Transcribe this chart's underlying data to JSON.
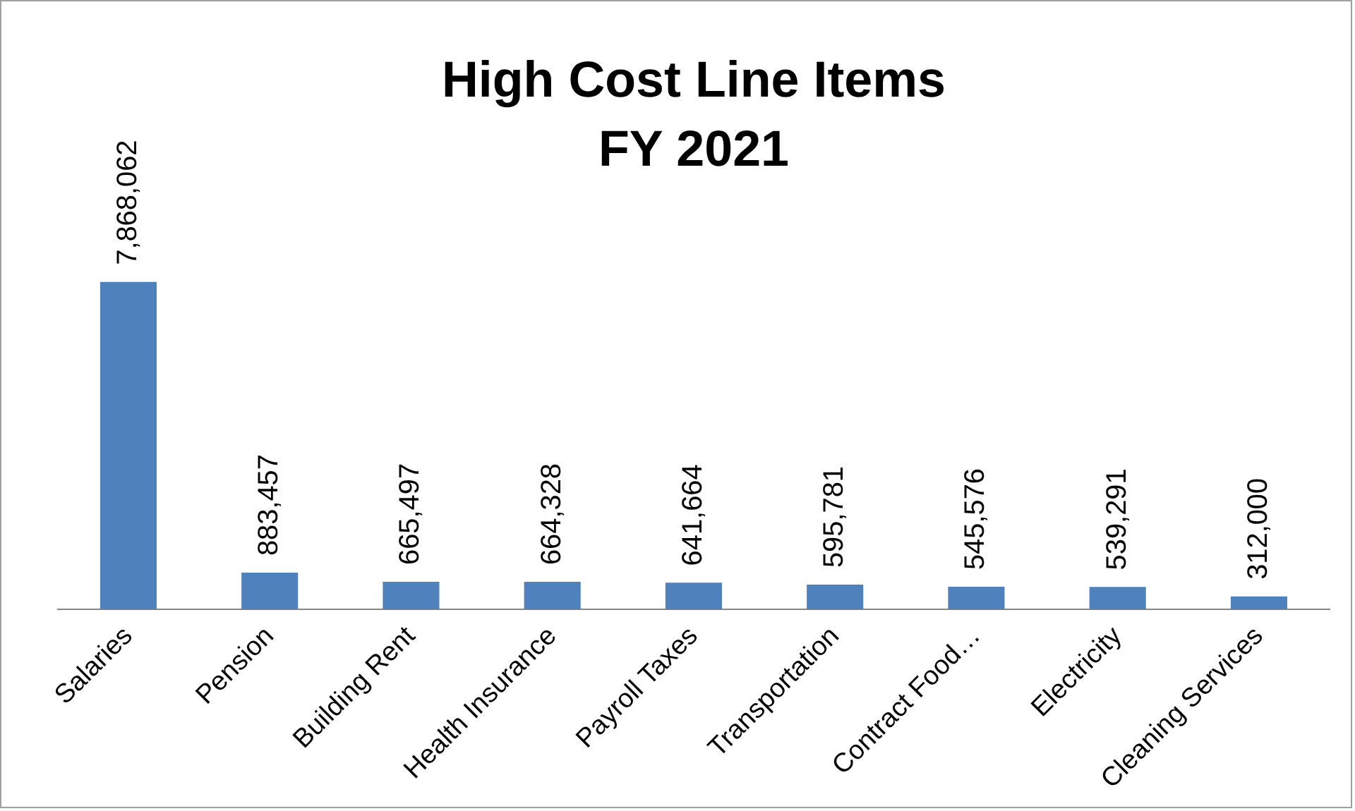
{
  "chart_data": {
    "type": "bar",
    "title": "High Cost Line Items",
    "subtitle": "FY 2021",
    "categories": [
      "Salaries",
      "Pension",
      "Building Rent",
      "Health Insurance",
      "Payroll Taxes",
      "Transportation",
      "Contract Food…",
      "Electricity",
      "Cleaning Services"
    ],
    "values": [
      7868062,
      883457,
      665497,
      664328,
      641664,
      595781,
      545576,
      539291,
      312000
    ],
    "value_labels": [
      "7,868,062",
      "883,457",
      "665,497",
      "664,328",
      "641,664",
      "595,781",
      "545,576",
      "539,291",
      "312,000"
    ],
    "color": "#4f81bd",
    "grid": false,
    "legend": false,
    "tick_labels": "x"
  }
}
